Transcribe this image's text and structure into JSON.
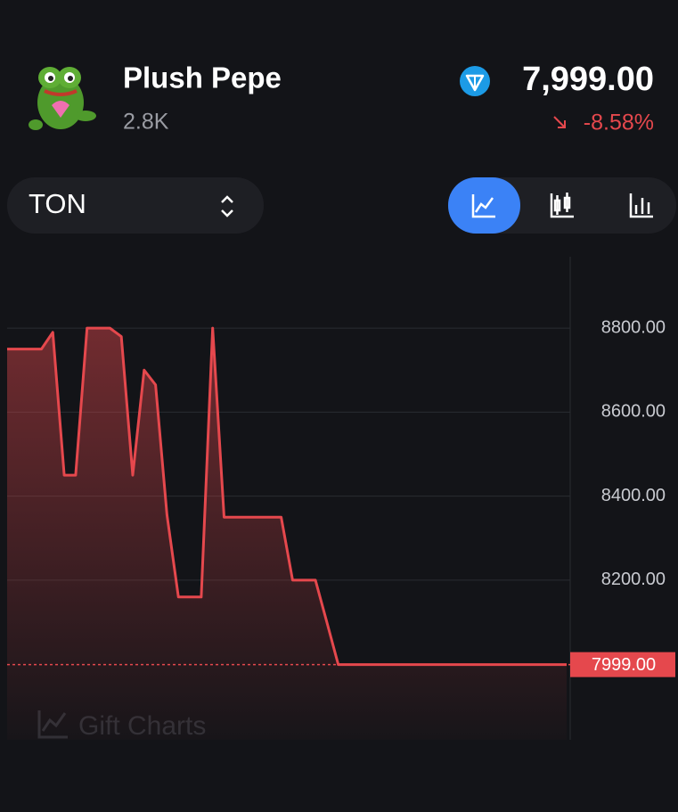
{
  "header": {
    "title": "Plush Pepe",
    "subtitle": "2.8K",
    "price": "7,999.00",
    "change": "-8.58%",
    "currency": "TON"
  },
  "chart_data": {
    "type": "area",
    "values": [
      8750,
      8750,
      8750,
      8750,
      8790,
      8450,
      8450,
      8800,
      8800,
      8800,
      8780,
      8450,
      8700,
      8665,
      8355,
      8160,
      8160,
      8160,
      8800,
      8350,
      8350,
      8350,
      8350,
      8350,
      8350,
      8200,
      8200,
      8200,
      8100,
      7999,
      7999,
      7999,
      7999,
      7999,
      7999,
      7999,
      7999,
      7999,
      7999,
      7999,
      7999,
      7999,
      7999,
      7999,
      7999,
      7999,
      7999,
      7999,
      7999,
      7999
    ],
    "color": "#e5484d",
    "ylim": [
      7820,
      8970
    ],
    "yticks": [
      {
        "value": 8200,
        "label": "8200.00"
      },
      {
        "value": 8400,
        "label": "8400.00"
      },
      {
        "value": 8600,
        "label": "8600.00"
      },
      {
        "value": 8800,
        "label": "8800.00"
      }
    ],
    "grid": true,
    "last_value": 7999,
    "last_label": "7999.00",
    "watermark": "Gift Charts"
  }
}
